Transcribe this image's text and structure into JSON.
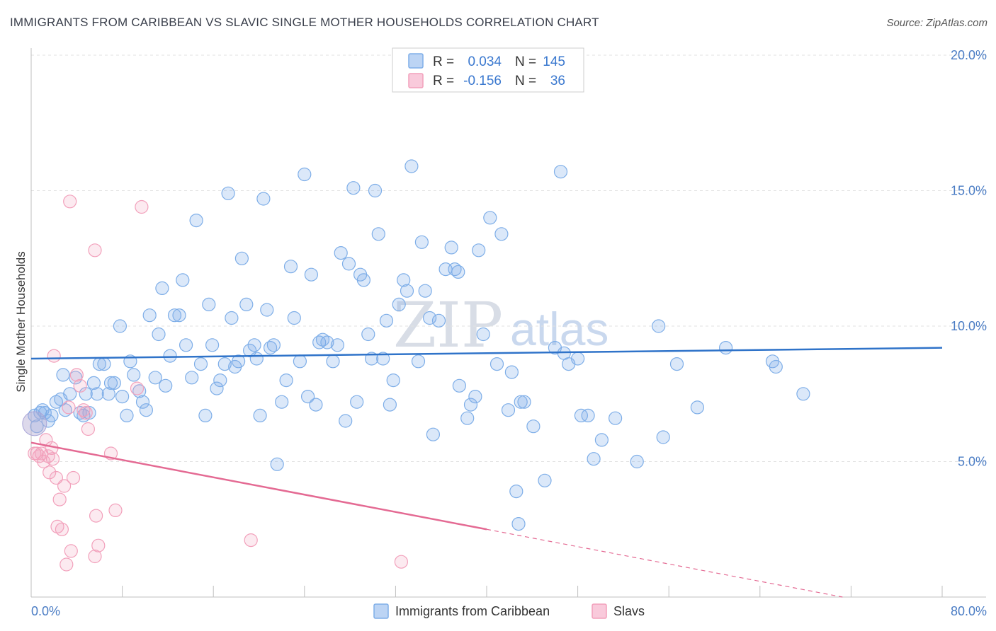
{
  "title": "IMMIGRANTS FROM CARIBBEAN VS SLAVIC SINGLE MOTHER HOUSEHOLDS CORRELATION CHART",
  "source": "Source: ZipAtlas.com",
  "watermark": {
    "zip": "ZIP",
    "atlas": "atlas"
  },
  "legend": {
    "r_label": "R =",
    "n_label": "N =",
    "series": [
      {
        "name": "Immigrants from Caribbean",
        "r": "0.034",
        "n": "145",
        "color": "#7eaee8"
      },
      {
        "name": "Slavs",
        "r": "-0.156",
        "n": "36",
        "color": "#f2a0bb"
      }
    ]
  },
  "chart_data": {
    "type": "scatter",
    "title": "IMMIGRANTS FROM CARIBBEAN VS SLAVIC SINGLE MOTHER HOUSEHOLDS CORRELATION CHART",
    "xlabel": "",
    "ylabel": "Single Mother Households",
    "xlim": [
      0,
      80
    ],
    "ylim": [
      0,
      20
    ],
    "x_tick_labels": [
      "0.0%",
      "80.0%"
    ],
    "y_ticks": [
      5,
      10,
      15,
      20
    ],
    "y_tick_labels": [
      "5.0%",
      "10.0%",
      "15.0%",
      "20.0%"
    ],
    "series": [
      {
        "name": "Immigrants from Caribbean",
        "color": "#7eaee8",
        "trend": {
          "x0": 0,
          "y0": 8.8,
          "x1": 80,
          "y1": 9.2
        },
        "points": [
          [
            0.3,
            6.7
          ],
          [
            0.5,
            6.3
          ],
          [
            0.8,
            6.8
          ],
          [
            1.0,
            6.9
          ],
          [
            1.2,
            6.8
          ],
          [
            1.5,
            6.5
          ],
          [
            1.8,
            6.7
          ],
          [
            2.2,
            7.2
          ],
          [
            2.6,
            7.3
          ],
          [
            3.0,
            6.9
          ],
          [
            2.8,
            8.2
          ],
          [
            3.4,
            7.5
          ],
          [
            3.9,
            8.1
          ],
          [
            4.3,
            6.8
          ],
          [
            4.6,
            6.7
          ],
          [
            4.8,
            7.5
          ],
          [
            5.1,
            6.8
          ],
          [
            5.5,
            7.9
          ],
          [
            5.8,
            7.5
          ],
          [
            6.0,
            8.6
          ],
          [
            6.4,
            8.6
          ],
          [
            6.8,
            7.5
          ],
          [
            7.0,
            7.9
          ],
          [
            7.3,
            7.9
          ],
          [
            7.8,
            10.0
          ],
          [
            8.0,
            7.4
          ],
          [
            8.4,
            6.7
          ],
          [
            8.7,
            8.7
          ],
          [
            9.0,
            8.2
          ],
          [
            9.5,
            7.6
          ],
          [
            9.8,
            7.2
          ],
          [
            10.1,
            6.9
          ],
          [
            10.4,
            10.4
          ],
          [
            10.9,
            8.1
          ],
          [
            11.2,
            9.7
          ],
          [
            11.5,
            11.4
          ],
          [
            11.8,
            7.8
          ],
          [
            12.2,
            8.9
          ],
          [
            12.6,
            10.4
          ],
          [
            13.0,
            10.4
          ],
          [
            13.3,
            11.7
          ],
          [
            13.6,
            9.3
          ],
          [
            14.1,
            8.1
          ],
          [
            14.5,
            13.9
          ],
          [
            14.9,
            8.6
          ],
          [
            15.3,
            6.7
          ],
          [
            15.6,
            10.8
          ],
          [
            15.9,
            9.3
          ],
          [
            16.3,
            7.7
          ],
          [
            16.6,
            8.0
          ],
          [
            17.0,
            8.6
          ],
          [
            17.3,
            14.9
          ],
          [
            17.6,
            10.3
          ],
          [
            17.9,
            8.5
          ],
          [
            18.2,
            8.7
          ],
          [
            18.5,
            12.5
          ],
          [
            18.9,
            10.8
          ],
          [
            19.2,
            9.1
          ],
          [
            19.6,
            9.3
          ],
          [
            19.8,
            8.8
          ],
          [
            20.1,
            6.7
          ],
          [
            20.4,
            14.7
          ],
          [
            20.7,
            10.6
          ],
          [
            21.0,
            9.2
          ],
          [
            21.3,
            9.3
          ],
          [
            21.6,
            4.9
          ],
          [
            22.0,
            7.2
          ],
          [
            22.4,
            8.0
          ],
          [
            22.8,
            12.2
          ],
          [
            23.1,
            10.3
          ],
          [
            23.6,
            8.7
          ],
          [
            24.0,
            15.6
          ],
          [
            24.3,
            7.4
          ],
          [
            24.6,
            11.9
          ],
          [
            25.0,
            7.1
          ],
          [
            25.3,
            9.4
          ],
          [
            25.6,
            9.5
          ],
          [
            26.0,
            9.4
          ],
          [
            26.5,
            8.7
          ],
          [
            26.9,
            9.3
          ],
          [
            27.2,
            12.7
          ],
          [
            27.6,
            6.5
          ],
          [
            27.9,
            12.3
          ],
          [
            28.3,
            15.1
          ],
          [
            28.6,
            7.2
          ],
          [
            28.9,
            11.9
          ],
          [
            29.2,
            11.7
          ],
          [
            29.6,
            9.7
          ],
          [
            29.9,
            8.8
          ],
          [
            30.2,
            15.0
          ],
          [
            30.5,
            13.4
          ],
          [
            30.9,
            8.8
          ],
          [
            31.2,
            10.2
          ],
          [
            31.5,
            7.1
          ],
          [
            31.8,
            8.0
          ],
          [
            32.3,
            10.8
          ],
          [
            32.7,
            11.7
          ],
          [
            33.0,
            11.3
          ],
          [
            33.4,
            15.9
          ],
          [
            34.0,
            8.7
          ],
          [
            34.3,
            13.1
          ],
          [
            34.6,
            11.3
          ],
          [
            35.0,
            10.3
          ],
          [
            35.3,
            6.0
          ],
          [
            35.8,
            10.2
          ],
          [
            36.4,
            12.1
          ],
          [
            36.9,
            12.9
          ],
          [
            37.2,
            12.1
          ],
          [
            37.6,
            7.8
          ],
          [
            38.3,
            6.6
          ],
          [
            38.6,
            7.1
          ],
          [
            39.0,
            7.4
          ],
          [
            39.3,
            12.8
          ],
          [
            39.7,
            9.7
          ],
          [
            40.3,
            14.0
          ],
          [
            40.9,
            8.6
          ],
          [
            41.3,
            13.4
          ],
          [
            41.9,
            6.9
          ],
          [
            42.2,
            8.3
          ],
          [
            42.6,
            3.9
          ],
          [
            43.0,
            7.2
          ],
          [
            43.3,
            7.2
          ],
          [
            44.1,
            6.3
          ],
          [
            45.1,
            4.3
          ],
          [
            46.0,
            9.2
          ],
          [
            46.5,
            15.7
          ],
          [
            46.8,
            9.0
          ],
          [
            47.2,
            8.6
          ],
          [
            48.0,
            8.8
          ],
          [
            48.3,
            6.7
          ],
          [
            48.9,
            6.7
          ],
          [
            49.4,
            5.1
          ],
          [
            50.1,
            5.8
          ],
          [
            51.3,
            6.6
          ],
          [
            53.2,
            5.0
          ],
          [
            55.1,
            10.0
          ],
          [
            55.5,
            5.9
          ],
          [
            56.7,
            8.6
          ],
          [
            58.5,
            7.0
          ],
          [
            61.0,
            9.2
          ],
          [
            65.1,
            8.7
          ],
          [
            65.4,
            8.5
          ],
          [
            67.8,
            7.5
          ],
          [
            42.8,
            2.7
          ],
          [
            37.5,
            12.0
          ]
        ]
      },
      {
        "name": "Slavs",
        "color": "#f2a0bb",
        "trend": {
          "x0": 0,
          "y0": 5.7,
          "x1": 40,
          "y1": 2.5,
          "dashed_to": {
            "x": 80,
            "y": -0.6
          }
        },
        "points": [
          [
            0.3,
            5.3
          ],
          [
            0.5,
            5.3
          ],
          [
            0.7,
            5.2
          ],
          [
            0.9,
            5.3
          ],
          [
            1.1,
            5.0
          ],
          [
            1.3,
            5.8
          ],
          [
            1.5,
            5.2
          ],
          [
            1.6,
            4.6
          ],
          [
            1.8,
            5.5
          ],
          [
            1.9,
            5.1
          ],
          [
            2.0,
            8.9
          ],
          [
            2.2,
            4.4
          ],
          [
            2.3,
            2.6
          ],
          [
            2.5,
            3.6
          ],
          [
            2.7,
            2.5
          ],
          [
            2.9,
            4.1
          ],
          [
            3.1,
            1.2
          ],
          [
            3.3,
            7.0
          ],
          [
            3.5,
            1.7
          ],
          [
            3.7,
            4.4
          ],
          [
            3.4,
            14.6
          ],
          [
            4.0,
            8.2
          ],
          [
            4.3,
            7.8
          ],
          [
            4.8,
            6.8
          ],
          [
            5.0,
            6.2
          ],
          [
            5.6,
            1.5
          ],
          [
            5.6,
            12.8
          ],
          [
            5.7,
            3.0
          ],
          [
            5.9,
            1.9
          ],
          [
            7.0,
            5.3
          ],
          [
            7.4,
            3.2
          ],
          [
            9.3,
            7.7
          ],
          [
            9.7,
            14.4
          ],
          [
            19.3,
            2.1
          ],
          [
            32.5,
            1.3
          ],
          [
            4.6,
            6.9
          ]
        ]
      }
    ]
  }
}
